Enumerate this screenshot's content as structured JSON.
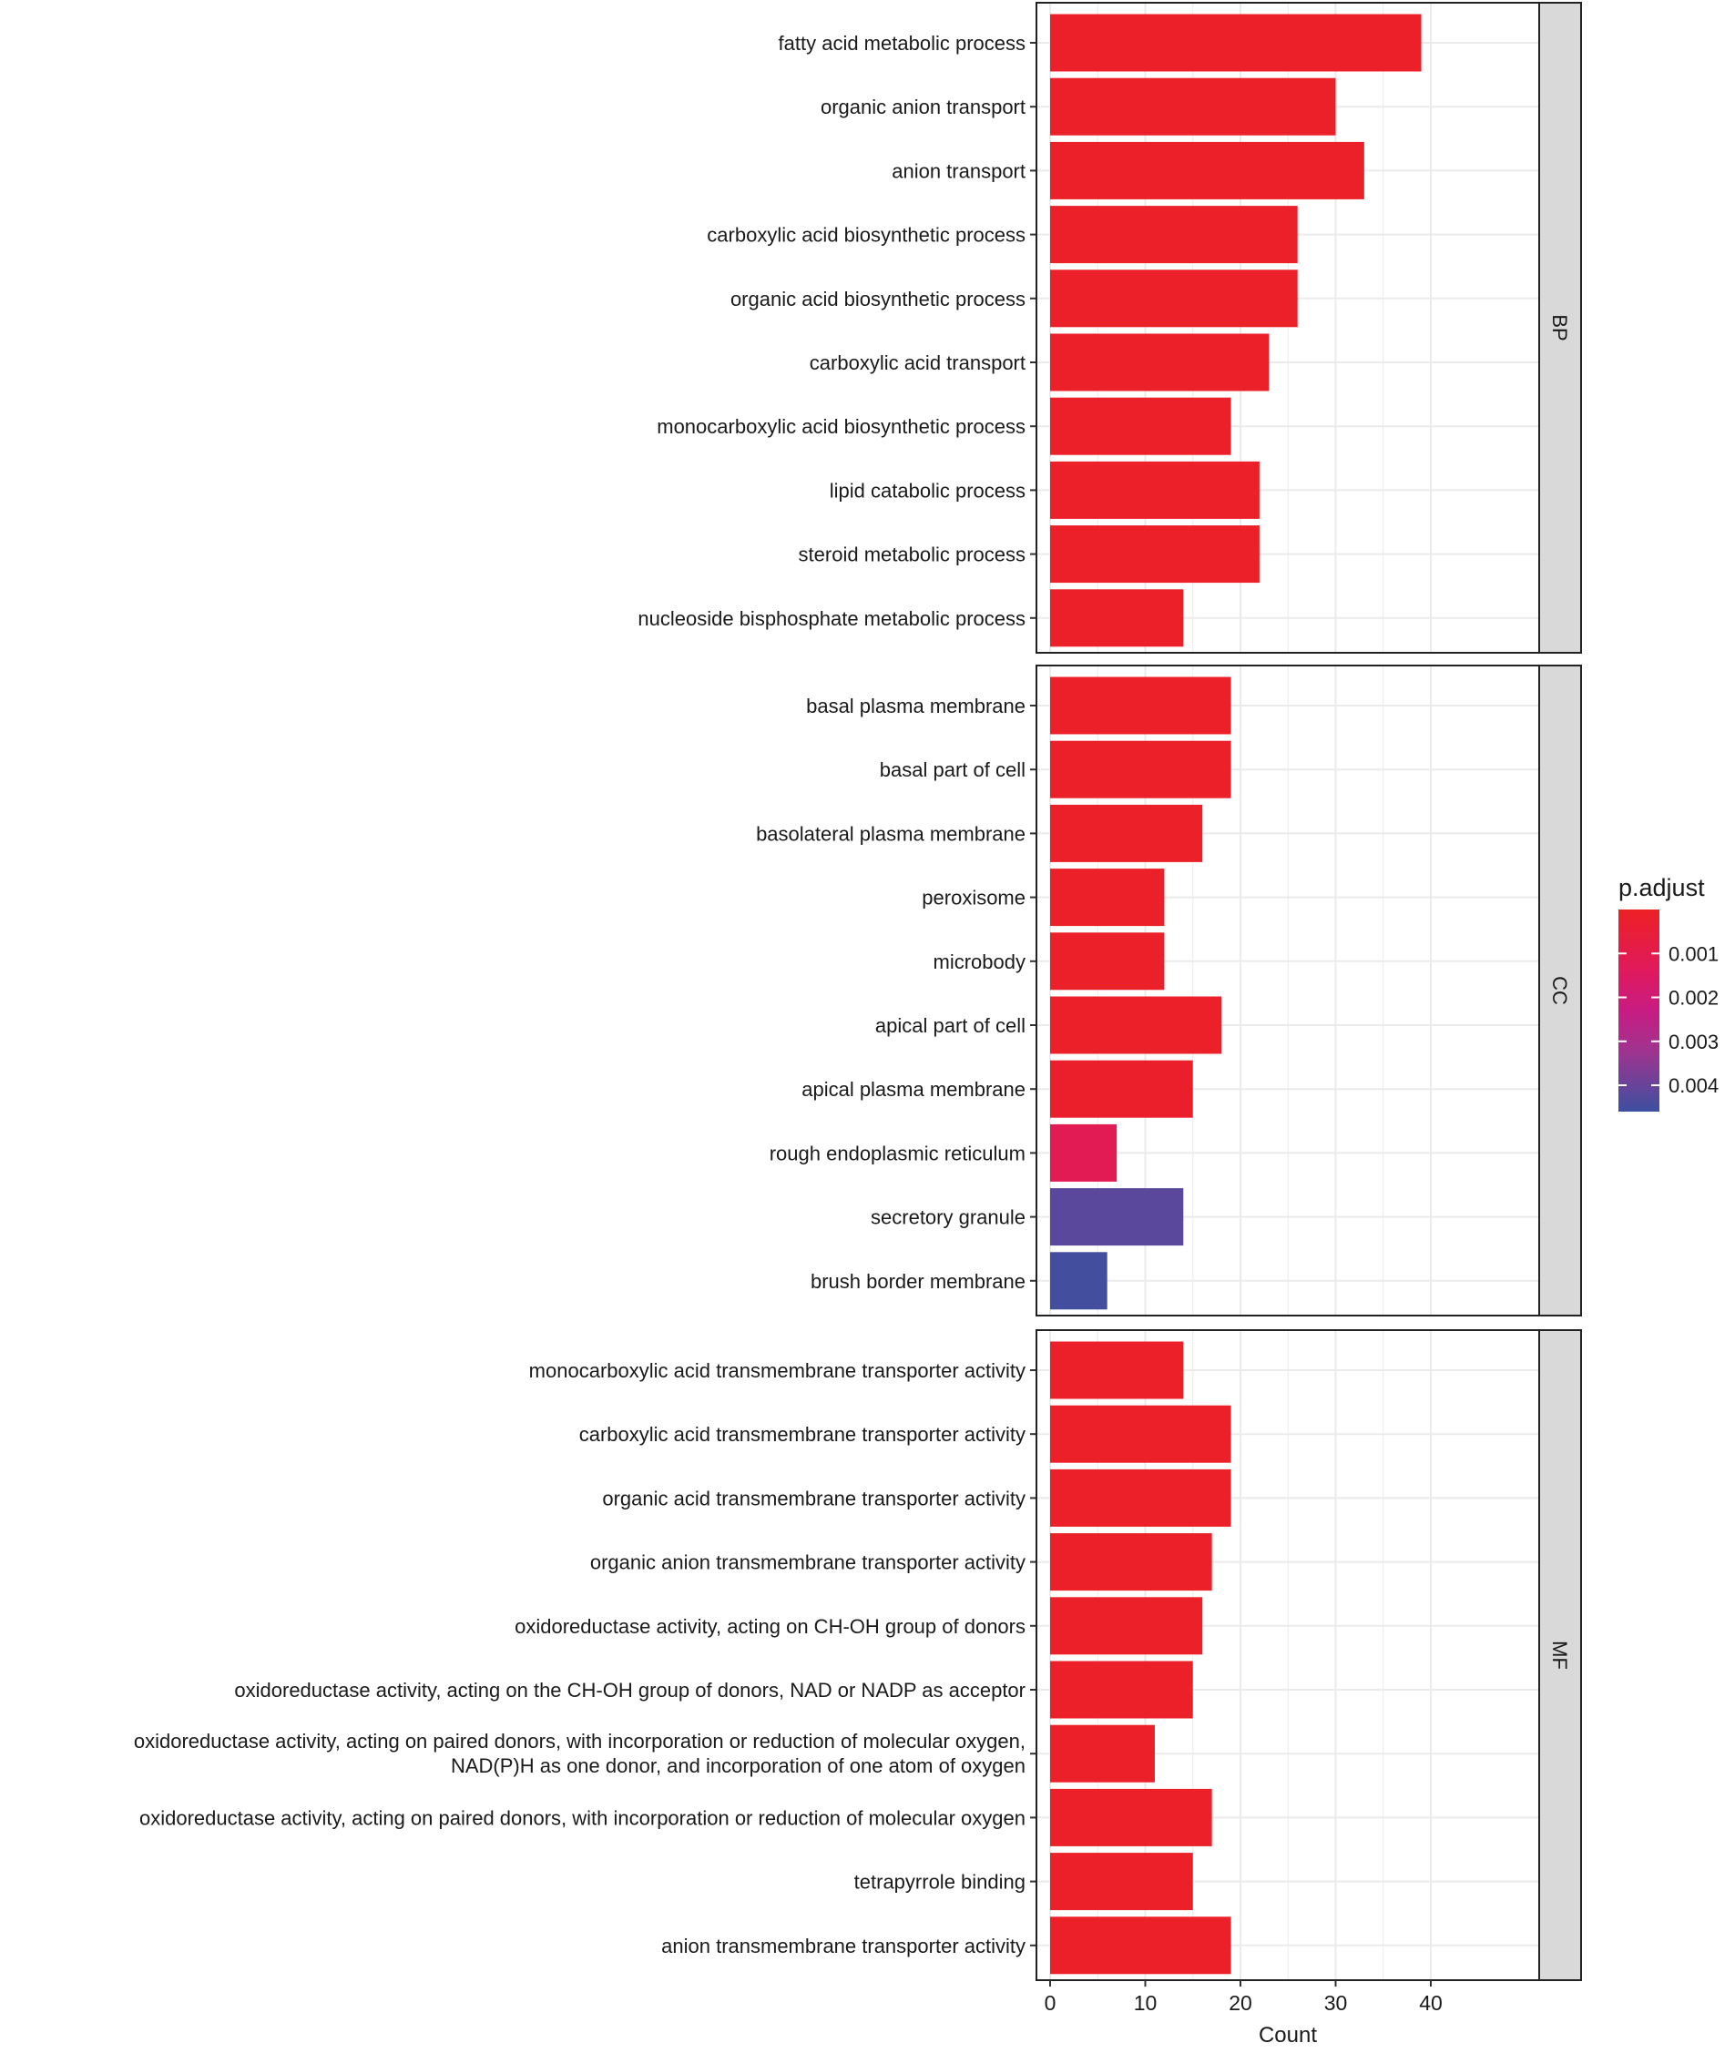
{
  "chart_data": {
    "type": "bar",
    "orientation": "horizontal",
    "xlabel": "Count",
    "xlim": [
      0,
      41
    ],
    "xticks": [
      0,
      10,
      20,
      30,
      40
    ],
    "grid": true,
    "legend": {
      "title": "p.adjust",
      "placement": "right",
      "ticks": [
        "0.001",
        "0.002",
        "0.003",
        "0.004"
      ],
      "tick_values": [
        0.001,
        0.002,
        0.003,
        0.004
      ],
      "range": [
        0.0,
        0.0046
      ],
      "low_color": "#ED2024",
      "high_color": "#3C50A0"
    },
    "facets": [
      {
        "name": "BP",
        "categories": [
          {
            "label": "fatty acid metabolic process",
            "count": 39,
            "p_adjust": 0.0001
          },
          {
            "label": "organic anion transport",
            "count": 30,
            "p_adjust": 0.0001
          },
          {
            "label": "anion transport",
            "count": 33,
            "p_adjust": 0.0001
          },
          {
            "label": "carboxylic acid biosynthetic process",
            "count": 26,
            "p_adjust": 0.0001
          },
          {
            "label": "organic acid biosynthetic process",
            "count": 26,
            "p_adjust": 0.0001
          },
          {
            "label": "carboxylic acid transport",
            "count": 23,
            "p_adjust": 0.0001
          },
          {
            "label": "monocarboxylic acid biosynthetic process",
            "count": 19,
            "p_adjust": 0.0001
          },
          {
            "label": "lipid catabolic process",
            "count": 22,
            "p_adjust": 0.0001
          },
          {
            "label": "steroid metabolic process",
            "count": 22,
            "p_adjust": 0.0001
          },
          {
            "label": "nucleoside bisphosphate metabolic process",
            "count": 14,
            "p_adjust": 0.0001
          }
        ]
      },
      {
        "name": "CC",
        "categories": [
          {
            "label": "basal plasma membrane",
            "count": 19,
            "p_adjust": 0.0001
          },
          {
            "label": "basal part of cell",
            "count": 19,
            "p_adjust": 0.0001
          },
          {
            "label": "basolateral plasma membrane",
            "count": 16,
            "p_adjust": 0.0001
          },
          {
            "label": "peroxisome",
            "count": 12,
            "p_adjust": 0.0001
          },
          {
            "label": "microbody",
            "count": 12,
            "p_adjust": 0.0001
          },
          {
            "label": "apical part of cell",
            "count": 18,
            "p_adjust": 0.0001
          },
          {
            "label": "apical plasma membrane",
            "count": 15,
            "p_adjust": 0.0002
          },
          {
            "label": "rough endoplasmic reticulum",
            "count": 7,
            "p_adjust": 0.0012
          },
          {
            "label": "secretory granule",
            "count": 14,
            "p_adjust": 0.0042
          },
          {
            "label": "brush border membrane",
            "count": 6,
            "p_adjust": 0.0045
          }
        ]
      },
      {
        "name": "MF",
        "categories": [
          {
            "label": "monocarboxylic acid transmembrane transporter activity",
            "count": 14,
            "p_adjust": 0.0001
          },
          {
            "label": "carboxylic acid transmembrane transporter activity",
            "count": 19,
            "p_adjust": 0.0001
          },
          {
            "label": "organic acid transmembrane transporter activity",
            "count": 19,
            "p_adjust": 0.0001
          },
          {
            "label": "organic anion transmembrane transporter activity",
            "count": 17,
            "p_adjust": 0.0001
          },
          {
            "label": "oxidoreductase activity, acting on CH-OH group of donors",
            "count": 16,
            "p_adjust": 0.0001
          },
          {
            "label": "oxidoreductase activity, acting on the CH-OH group of donors, NAD or NADP as acceptor",
            "count": 15,
            "p_adjust": 0.0001
          },
          {
            "label": "oxidoreductase activity, acting on paired donors, with incorporation or reduction of molecular oxygen,\nNAD(P)H as one donor, and incorporation of one atom of oxygen",
            "count": 11,
            "p_adjust": 0.0001
          },
          {
            "label": "oxidoreductase activity, acting on paired donors, with incorporation or reduction of molecular oxygen",
            "count": 17,
            "p_adjust": 0.0001
          },
          {
            "label": "tetrapyrrole binding",
            "count": 15,
            "p_adjust": 0.0001
          },
          {
            "label": "anion transmembrane transporter activity",
            "count": 19,
            "p_adjust": 0.0001
          }
        ]
      }
    ]
  }
}
